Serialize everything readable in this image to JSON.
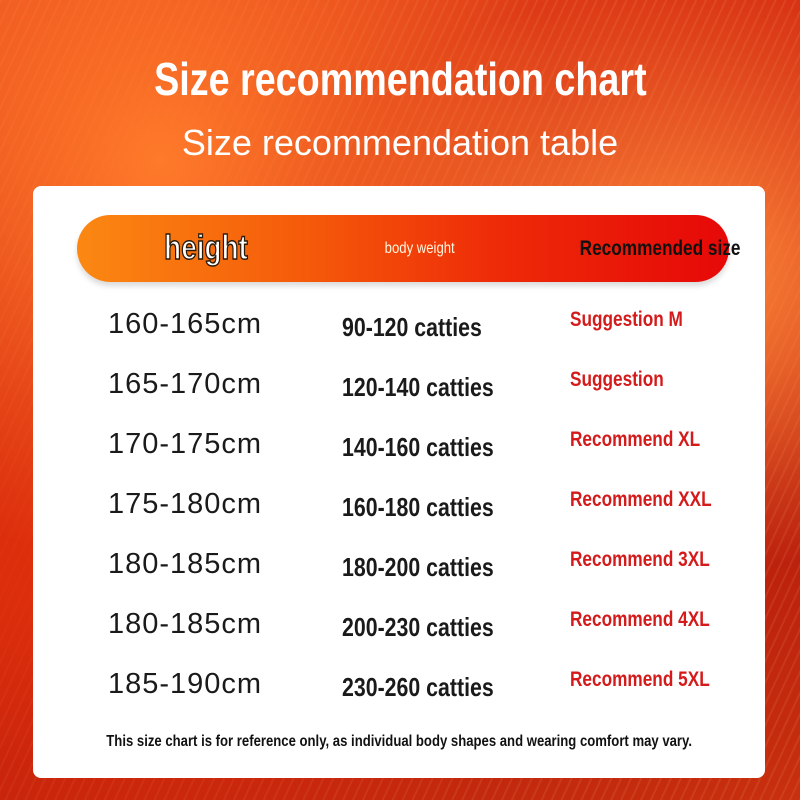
{
  "title": "Size recommendation chart",
  "subtitle": "Size recommendation table",
  "header": {
    "height": "height",
    "weight": "body weight",
    "size": "Recommended size"
  },
  "rows": [
    {
      "height": "160-165cm",
      "weight": "90-120 catties",
      "size": "Suggestion M"
    },
    {
      "height": "165-170cm",
      "weight": "120-140 catties",
      "size": "Suggestion"
    },
    {
      "height": "170-175cm",
      "weight": "140-160 catties",
      "size": "Recommend XL"
    },
    {
      "height": "175-180cm",
      "weight": "160-180 catties",
      "size": "Recommend XXL"
    },
    {
      "height": "180-185cm",
      "weight": "180-200 catties",
      "size": "Recommend 3XL"
    },
    {
      "height": "180-185cm",
      "weight": "200-230 catties",
      "size": "Recommend 4XL"
    },
    {
      "height": "185-190cm",
      "weight": "230-260 catties",
      "size": "Recommend 5XL"
    }
  ],
  "note": "This size chart is for reference only, as individual body shapes and wearing comfort may vary.",
  "colors": {
    "accent_start": "#fb8812",
    "accent_end": "#e60808",
    "size_text": "#d41a1a"
  }
}
